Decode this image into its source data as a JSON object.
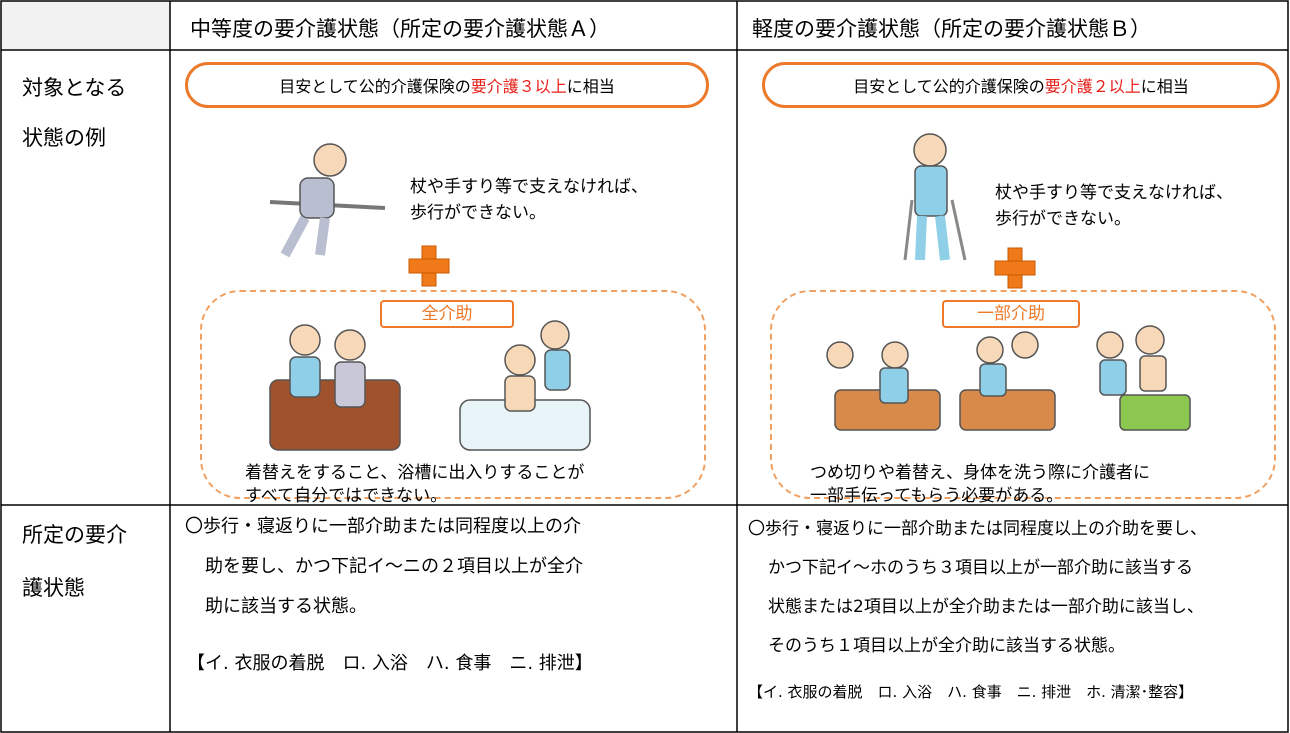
{
  "table": {
    "header": {
      "col_a": "中等度の要介護状態（所定の要介護状態Ａ）",
      "col_b": "軽度の要介護状態（所定の要介護状態Ｂ）"
    },
    "rows": [
      {
        "label_lines": [
          "対象となる",
          "状態の例"
        ],
        "col_a": {
          "banner": {
            "before": "目安として公的介護保険の",
            "highlight": "要介護３以上",
            "after": "に相当"
          },
          "caption_lines": [
            "杖や手すり等で支えなければ、",
            "歩行ができない。"
          ],
          "assist_label": "全介助",
          "assist_lines": [
            "着替えをすること、浴槽に出入りすることが",
            "すべて自分ではできない。"
          ]
        },
        "col_b": {
          "banner": {
            "before": "目安として公的介護保険の",
            "highlight": "要介護２以上",
            "after": "に相当"
          },
          "caption_lines": [
            "杖や手すり等で支えなければ、",
            "歩行ができない。"
          ],
          "assist_label": "一部介助",
          "assist_lines": [
            "つめ切りや着替え、身体を洗う際に介護者に",
            "一部手伝ってもらう必要がある。"
          ]
        }
      },
      {
        "label_lines": [
          "所定の要介",
          "護状態"
        ],
        "col_a": {
          "lines": [
            "〇歩行・寝返りに一部介助または同程度以上の介",
            "助を要し、かつ下記イ～ニの２項目以上が全介",
            "助に該当する状態。"
          ],
          "items": "【イ. 衣服の着脱　ロ. 入浴　ハ. 食事　ニ. 排泄】"
        },
        "col_b": {
          "lines": [
            "〇歩行・寝返りに一部介助または同程度以上の介助を要し、",
            "かつ下記イ～ホのうち３項目以上が一部介助に該当する",
            "状態または2項目以上が全介助または一部介助に該当し、",
            "そのうち１項目以上が全介助に該当する状態。"
          ],
          "items": "【イ. 衣服の着脱　ロ. 入浴　ハ. 食事　ニ. 排泄　ホ. 清潔･整容】"
        }
      }
    ]
  }
}
